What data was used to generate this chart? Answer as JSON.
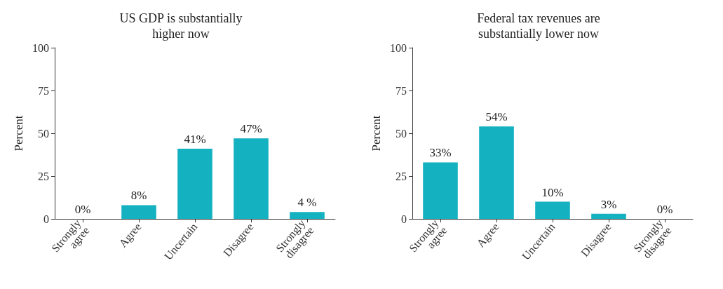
{
  "chart_data": [
    {
      "type": "bar",
      "title": "US GDP is substantially\nhigher now",
      "ylabel": "Percent",
      "categories": [
        "Strongly agree",
        "Agree",
        "Uncertain",
        "Disagree",
        "Strongly disagree"
      ],
      "values": [
        0,
        8,
        41,
        47,
        4
      ],
      "value_labels": [
        "0%",
        "8%",
        "41%",
        "47%",
        "4 %"
      ],
      "color": "#14b1c0",
      "ylim": [
        0,
        100
      ],
      "yticks": [
        0,
        25,
        50,
        75,
        100
      ]
    },
    {
      "type": "bar",
      "title": "Federal tax revenues are\nsubstantially lower now",
      "ylabel": "Percent",
      "categories": [
        "Strongly agree",
        "Agree",
        "Uncertain",
        "Disagree",
        "Strongly disagree"
      ],
      "values": [
        33,
        54,
        10,
        3,
        0
      ],
      "value_labels": [
        "33%",
        "54%",
        "10%",
        "3%",
        "0%"
      ],
      "color": "#14b1c0",
      "ylim": [
        0,
        100
      ],
      "yticks": [
        0,
        25,
        50,
        75,
        100
      ]
    }
  ]
}
